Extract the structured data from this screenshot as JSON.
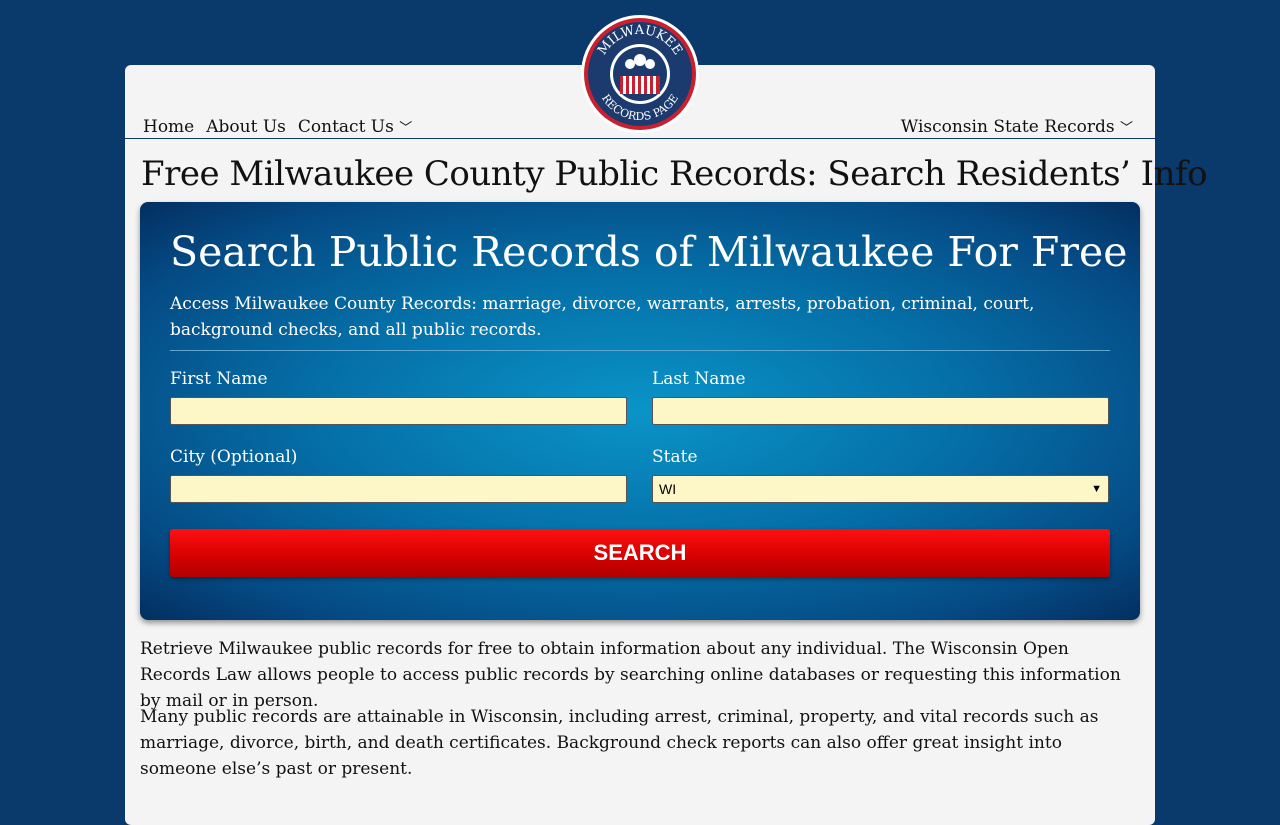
{
  "nav": {
    "home": "Home",
    "about": "About Us",
    "contact": "Contact Us",
    "state_records": "Wisconsin State Records"
  },
  "logo": {
    "top_text": "MILWAUKEE",
    "bottom_text": "RECORDS PAGE"
  },
  "page_title": "Free Milwaukee County Public Records: Search Residents’ Info",
  "hero": {
    "title": "Search Public Records of Milwaukee For Free",
    "subtitle": "Access Milwaukee County Records: marriage, divorce, warrants, arrests, probation, criminal, court, background checks, and all public records.",
    "first_name_label": "First Name",
    "last_name_label": "Last Name",
    "city_label": "City (Optional)",
    "state_label": "State",
    "state_value": "WI",
    "search_label": "SEARCH"
  },
  "body": [
    "Retrieve Milwaukee public records for free to obtain information about any individual. The Wisconsin Open Records Law allows people to access public records by searching online databases or requesting this information by mail or in person.",
    "Many public records are attainable in Wisconsin, including arrest, criminal, property, and vital records such as marriage, divorce, birth, and death certificates. Background check reports can also offer great insight into someone else’s past or present."
  ]
}
